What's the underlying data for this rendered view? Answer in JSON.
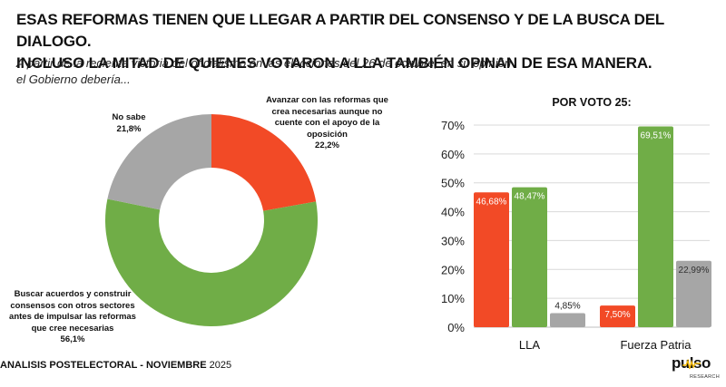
{
  "header": {
    "title_line1": "ESAS REFORMAS TIENEN QUE LLEGAR A PARTIR DEL CONSENSO Y DE LA BUSCA DEL DIALOGO.",
    "title_line2": "INCLUSO LA MITAD DE QUIENES VOTARON A LLA TAMBIÉN OPINAN DE ESA MANERA.",
    "subtitle_line1": "A partir de la reciente victoria del oficialismo en las elecciones del 26 de octubre, en su opinión",
    "subtitle_line2": "el Gobierno debería..."
  },
  "footer": {
    "label_bold": "ANALISIS POSTELECTORAL - NOVIEMBRE",
    "year": " 2025",
    "logo_main": "pulso",
    "logo_sub": "RESEARCH"
  },
  "colors": {
    "red": "#F24A26",
    "green": "#70AD47",
    "gray": "#A6A6A6"
  },
  "chart_data": [
    {
      "type": "pie",
      "variant": "donut",
      "slices": [
        {
          "label": "Avanzar con las reformas que crea necesarias aunque no cuente con el apoyo de la oposición",
          "value": 22.2,
          "value_label": "22,2%",
          "color": "#F24A26",
          "label_lines": [
            "Avanzar con las reformas que",
            "crea necesarias aunque no",
            "cuente con el apoyo de la",
            "oposición"
          ]
        },
        {
          "label": "Buscar acuerdos y construir consensos con otros sectores antes de impulsar las reformas que cree necesarias",
          "value": 56.1,
          "value_label": "56,1%",
          "color": "#70AD47",
          "label_lines": [
            "Buscar acuerdos y construir",
            "consensos con otros sectores",
            "antes de impulsar las reformas",
            "que cree necesarias"
          ]
        },
        {
          "label": "No sabe",
          "value": 21.8,
          "value_label": "21,8%",
          "color": "#A6A6A6",
          "label_lines": [
            "No sabe"
          ]
        }
      ]
    },
    {
      "type": "bar",
      "title": "POR VOTO 25:",
      "categories": [
        "LLA",
        "Fuerza Patria"
      ],
      "series": [
        {
          "name": "Avanzar con las reformas",
          "color": "#F24A26",
          "values": [
            46.68,
            7.5
          ],
          "labels": [
            "46,68%",
            "7,50%"
          ]
        },
        {
          "name": "Buscar acuerdos",
          "color": "#70AD47",
          "values": [
            48.47,
            69.51
          ],
          "labels": [
            "48,47%",
            "69,51%"
          ]
        },
        {
          "name": "No sabe",
          "color": "#A6A6A6",
          "values": [
            4.85,
            22.99
          ],
          "labels": [
            "4,85%",
            "22,99%"
          ]
        }
      ],
      "yticks": [
        "0%",
        "10%",
        "20%",
        "30%",
        "40%",
        "50%",
        "60%",
        "70%"
      ],
      "ylim": [
        0,
        70
      ],
      "xlabel": "",
      "ylabel": "",
      "grid": true,
      "legend": "none"
    }
  ]
}
